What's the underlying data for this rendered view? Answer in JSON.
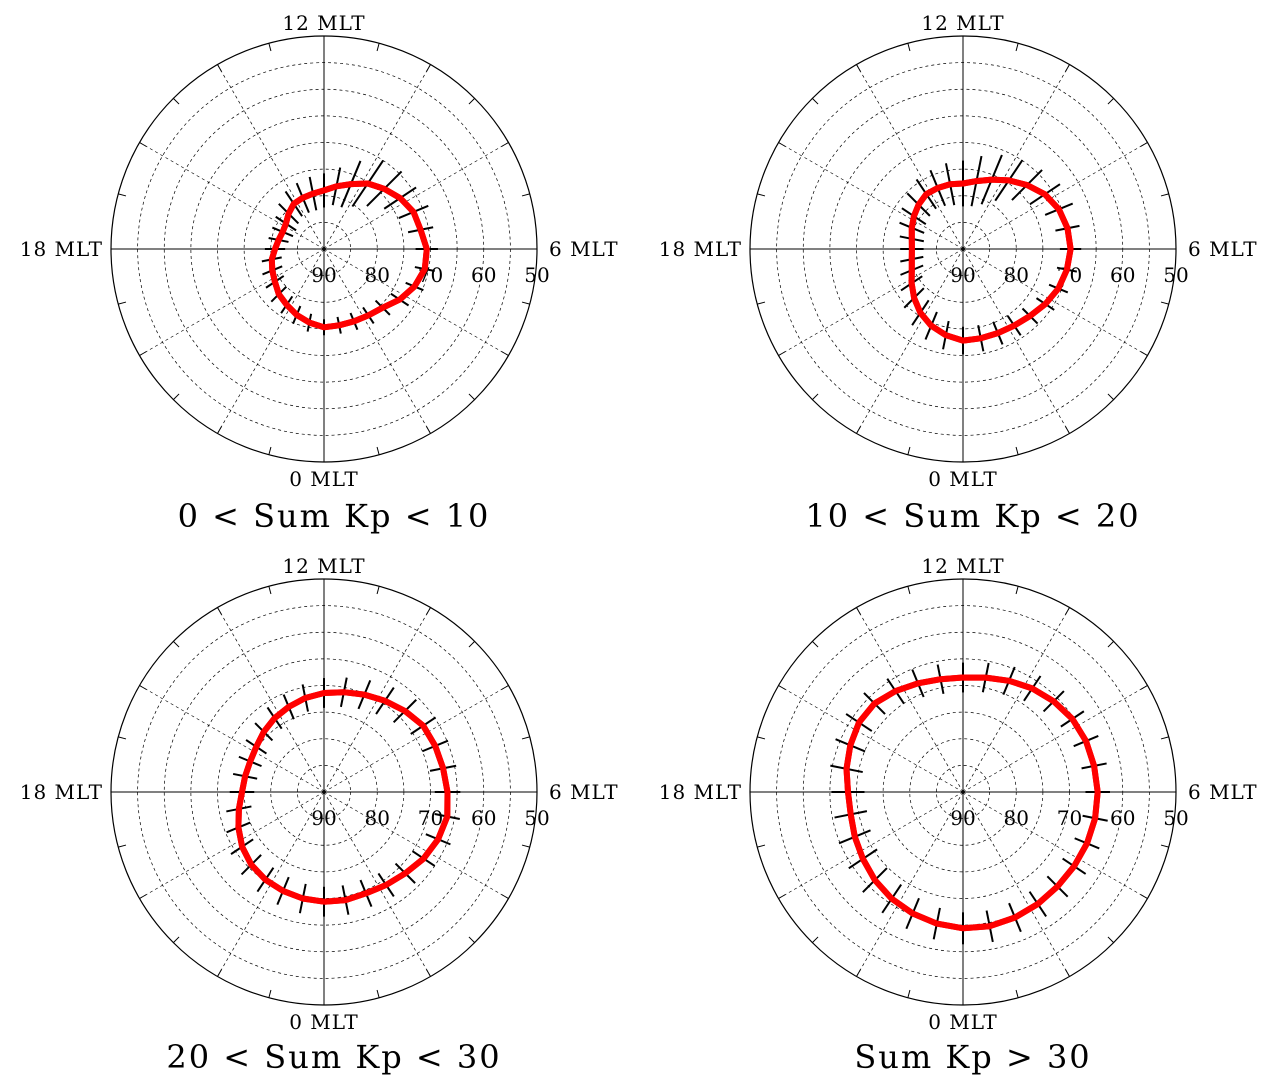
{
  "chart_data": [
    {
      "type": "polar",
      "title": "0 < Sum Kp < 10",
      "mlt_labels": {
        "top": "12 MLT",
        "right": "6 MLT",
        "bottom": "0 MLT",
        "left": "18 MLT"
      },
      "ring_labels": [
        "90",
        "80",
        "70",
        "60",
        "50"
      ],
      "lat_range": [
        50,
        90
      ],
      "series": [
        {
          "mlt": [
            0,
            0.75,
            1.5,
            2.25,
            3,
            3.75,
            4.5,
            5.25,
            6,
            6.75,
            7.5,
            8.25,
            9,
            9.75,
            10.5,
            11.25,
            12,
            12.75,
            13.5,
            14.25,
            15,
            15.75,
            16.5,
            17.25,
            18,
            18.75,
            19.5,
            20.25,
            21,
            21.75,
            22.5,
            23.25
          ],
          "lat": [
            75.3,
            75.4,
            75.3,
            75.0,
            74.4,
            72.9,
            71.6,
            70.7,
            70.7,
            71.5,
            71.8,
            72.8,
            74.0,
            75.2,
            76.8,
            78.0,
            79.0,
            79.4,
            79.6,
            79.8,
            80.6,
            81.4,
            81.6,
            81.3,
            80.8,
            80.0,
            79.5,
            78.9,
            78.0,
            77.4,
            76.6,
            75.9
          ],
          "err": [
            1.5,
            1.6,
            1.7,
            1.8,
            1.9,
            2.0,
            1.8,
            1.9,
            2.1,
            2.4,
            3.0,
            3.6,
            4.6,
            5.2,
            4.7,
            3.6,
            3.2,
            3.2,
            3.0,
            2.8,
            2.6,
            2.3,
            2.1,
            1.9,
            1.9,
            1.9,
            2.0,
            2.0,
            2.0,
            1.9,
            1.8,
            1.7
          ]
        }
      ]
    },
    {
      "type": "polar",
      "title": "10 < Sum Kp < 20",
      "mlt_labels": {
        "top": "12 MLT",
        "right": "6 MLT",
        "bottom": "0 MLT",
        "left": "18 MLT"
      },
      "ring_labels": [
        "90",
        "80",
        "70",
        "60",
        "50"
      ],
      "lat_range": [
        50,
        90
      ],
      "series": [
        {
          "mlt": [
            0,
            0.75,
            1.5,
            2.25,
            3,
            3.75,
            4.5,
            5.25,
            6,
            6.75,
            7.5,
            8.25,
            9,
            9.75,
            10.5,
            11.25,
            12,
            12.75,
            13.5,
            14.25,
            15,
            15.75,
            16.5,
            17.25,
            18,
            18.75,
            19.5,
            20.25,
            21,
            21.75,
            22.5,
            23.25
          ],
          "lat": [
            72.8,
            72.9,
            72.9,
            72.7,
            72.2,
            71.4,
            70.6,
            70.1,
            69.8,
            70.0,
            70.5,
            71.5,
            73.0,
            74.5,
            75.9,
            77.0,
            77.7,
            77.6,
            77.6,
            77.6,
            78.2,
            78.9,
            79.6,
            80.2,
            80.4,
            80.2,
            79.6,
            78.4,
            77.0,
            75.6,
            74.4,
            73.5
          ],
          "err": [
            2.6,
            2.5,
            2.3,
            2.2,
            2.0,
            2.0,
            1.9,
            1.9,
            2.0,
            2.3,
            2.8,
            3.4,
            4.0,
            4.6,
            5.0,
            4.8,
            4.3,
            4.0,
            3.6,
            3.3,
            3.0,
            2.7,
            2.5,
            2.3,
            2.2,
            2.2,
            2.3,
            2.4,
            2.6,
            2.8,
            2.8,
            2.7
          ]
        }
      ]
    },
    {
      "type": "polar",
      "title": "20 < Sum Kp < 30",
      "mlt_labels": {
        "top": "12 MLT",
        "right": "6 MLT",
        "bottom": "0 MLT",
        "left": "18 MLT"
      },
      "ring_labels": [
        "90",
        "80",
        "70",
        "60",
        "50"
      ],
      "lat_range": [
        50,
        90
      ],
      "series": [
        {
          "mlt": [
            0,
            0.75,
            1.5,
            2.25,
            3,
            3.75,
            4.5,
            5.25,
            6,
            6.75,
            7.5,
            8.25,
            9,
            9.75,
            10.5,
            11.25,
            12,
            12.75,
            13.5,
            14.25,
            15,
            15.75,
            16.5,
            17.25,
            18,
            18.75,
            19.5,
            20.25,
            21,
            21.75,
            22.5,
            23.25
          ],
          "lat": [
            69.4,
            69.3,
            69.4,
            69.0,
            68.4,
            67.5,
            66.8,
            66.4,
            66.8,
            67.2,
            67.4,
            67.6,
            68.5,
            69.4,
            70.2,
            70.9,
            71.4,
            72.0,
            72.7,
            73.3,
            74.0,
            74.7,
            75.0,
            74.9,
            74.6,
            73.7,
            72.6,
            71.5,
            70.7,
            70.2,
            69.9,
            69.6
          ],
          "err": [
            2.8,
            2.8,
            2.7,
            2.6,
            2.6,
            2.5,
            2.5,
            2.4,
            2.4,
            2.5,
            2.6,
            2.8,
            3.0,
            3.0,
            2.9,
            2.8,
            2.8,
            2.6,
            2.5,
            2.4,
            2.3,
            2.3,
            2.3,
            2.3,
            2.3,
            2.4,
            2.4,
            2.5,
            2.6,
            2.7,
            2.8,
            2.8
          ]
        }
      ]
    },
    {
      "type": "polar",
      "title": "Sum Kp > 30",
      "mlt_labels": {
        "top": "12 MLT",
        "right": "6 MLT",
        "bottom": "0 MLT",
        "left": "18 MLT"
      },
      "ring_labels": [
        "90",
        "80",
        "70",
        "60",
        "50"
      ],
      "lat_range": [
        50,
        90
      ],
      "series": [
        {
          "mlt": [
            0,
            0.75,
            1.5,
            2.25,
            3,
            3.75,
            4.5,
            5.25,
            6,
            6.75,
            7.5,
            8.25,
            9,
            9.75,
            10.5,
            11.25,
            12,
            12.75,
            13.5,
            14.25,
            15,
            15.75,
            16.5,
            17.25,
            18,
            18.75,
            19.5,
            20.25,
            21,
            21.75,
            22.5,
            23.25
          ],
          "lat": [
            64.4,
            64.3,
            64.5,
            64.7,
            64.9,
            64.9,
            64.8,
            64.7,
            64.7,
            64.9,
            65.0,
            65.3,
            65.9,
            66.6,
            67.4,
            68.1,
            68.5,
            68.4,
            67.9,
            67.2,
            66.5,
            66.5,
            67.1,
            67.7,
            68.4,
            68.5,
            68.0,
            67.4,
            66.6,
            65.9,
            65.3,
            64.8
          ],
          "err": [
            3.0,
            3.0,
            2.9,
            2.8,
            2.7,
            2.6,
            2.5,
            2.4,
            2.3,
            2.4,
            2.5,
            2.6,
            2.7,
            2.8,
            2.8,
            2.8,
            2.8,
            2.8,
            2.8,
            2.8,
            2.8,
            2.9,
            3.0,
            3.1,
            3.1,
            3.1,
            3.2,
            3.2,
            3.2,
            3.2,
            3.1,
            3.0
          ]
        }
      ]
    }
  ],
  "colors": {
    "boundary": "#ff0000",
    "errbar": "#000000",
    "grid": "#000000"
  }
}
